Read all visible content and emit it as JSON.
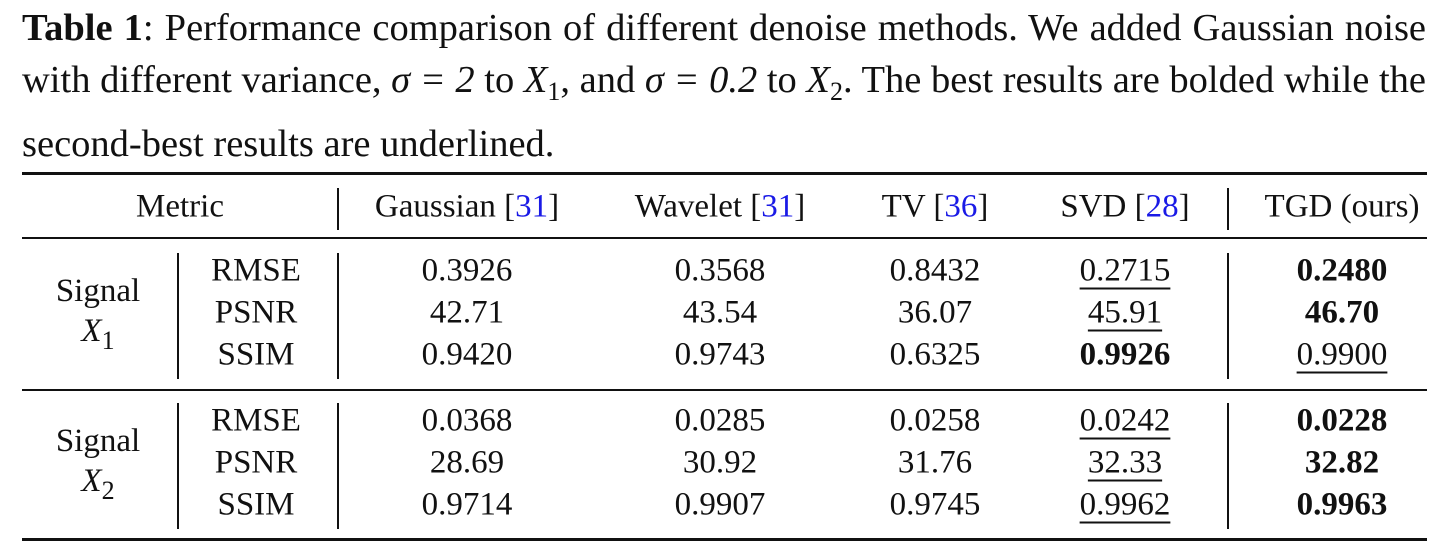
{
  "caption": [
    {
      "text": "Table 1",
      "style": "bold"
    },
    {
      "text": ": Performance comparison of different denoise methods. We added Gaussian noise with different variance, "
    },
    {
      "text": "σ = 2",
      "style": "math"
    },
    {
      "text": " to "
    },
    {
      "text": "X",
      "style": "math"
    },
    {
      "text": "1",
      "style": "sub"
    },
    {
      "text": ", and "
    },
    {
      "text": "σ = 0.2",
      "style": "math"
    },
    {
      "text": " to "
    },
    {
      "text": "X",
      "style": "math"
    },
    {
      "text": "2",
      "style": "sub"
    },
    {
      "text": ". The best results are bolded while the second-best results are underlined."
    }
  ],
  "table": {
    "metric_header": "Metric",
    "columns": [
      {
        "text": "Gaussian [",
        "ref": "31",
        "end": "]"
      },
      {
        "text": "Wavelet [",
        "ref": "31",
        "end": "]"
      },
      {
        "text": "TV [",
        "ref": "36",
        "end": "]"
      },
      {
        "text": "SVD [",
        "ref": "28",
        "end": "]"
      },
      {
        "text": "TGD (ours)"
      }
    ],
    "groups": [
      {
        "label": "Signal",
        "var": "X",
        "sub": "1",
        "rows": [
          {
            "metric": "RMSE",
            "values": [
              "0.3926",
              "0.3568",
              "0.8432",
              "0.2715",
              "0.2480"
            ],
            "best": 4,
            "second": 3
          },
          {
            "metric": "PSNR",
            "values": [
              "42.71",
              "43.54",
              "36.07",
              "45.91",
              "46.70"
            ],
            "best": 4,
            "second": 3
          },
          {
            "metric": "SSIM",
            "values": [
              "0.9420",
              "0.9743",
              "0.6325",
              "0.9926",
              "0.9900"
            ],
            "best": 3,
            "second": 4
          }
        ]
      },
      {
        "label": "Signal",
        "var": "X",
        "sub": "2",
        "rows": [
          {
            "metric": "RMSE",
            "values": [
              "0.0368",
              "0.0285",
              "0.0258",
              "0.0242",
              "0.0228"
            ],
            "best": 4,
            "second": 3
          },
          {
            "metric": "PSNR",
            "values": [
              "28.69",
              "30.92",
              "31.76",
              "32.33",
              "32.82"
            ],
            "best": 4,
            "second": 3
          },
          {
            "metric": "SSIM",
            "values": [
              "0.9714",
              "0.9907",
              "0.9745",
              "0.9962",
              "0.9963"
            ],
            "best": 4,
            "second": 3
          }
        ]
      }
    ]
  }
}
